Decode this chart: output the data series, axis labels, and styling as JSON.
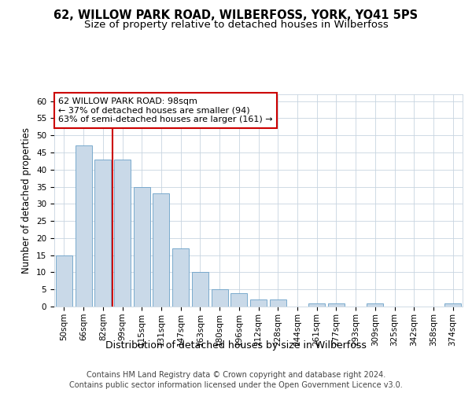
{
  "title": "62, WILLOW PARK ROAD, WILBERFOSS, YORK, YO41 5PS",
  "subtitle": "Size of property relative to detached houses in Wilberfoss",
  "xlabel": "Distribution of detached houses by size in Wilberfoss",
  "ylabel": "Number of detached properties",
  "bar_labels": [
    "50sqm",
    "66sqm",
    "82sqm",
    "99sqm",
    "115sqm",
    "131sqm",
    "147sqm",
    "163sqm",
    "180sqm",
    "196sqm",
    "212sqm",
    "228sqm",
    "244sqm",
    "261sqm",
    "277sqm",
    "293sqm",
    "309sqm",
    "325sqm",
    "342sqm",
    "358sqm",
    "374sqm"
  ],
  "bar_values": [
    15,
    47,
    43,
    43,
    35,
    33,
    17,
    10,
    5,
    4,
    2,
    2,
    0,
    1,
    1,
    0,
    1,
    0,
    0,
    0,
    1
  ],
  "bar_color": "#c9d9e8",
  "bar_edge_color": "#6aa0c7",
  "reference_line_x": 2.5,
  "reference_line_color": "#cc0000",
  "annotation_text": "62 WILLOW PARK ROAD: 98sqm\n← 37% of detached houses are smaller (94)\n63% of semi-detached houses are larger (161) →",
  "annotation_box_color": "#ffffff",
  "annotation_box_edge_color": "#cc0000",
  "ylim": [
    0,
    62
  ],
  "yticks": [
    0,
    5,
    10,
    15,
    20,
    25,
    30,
    35,
    40,
    45,
    50,
    55,
    60
  ],
  "footer_line1": "Contains HM Land Registry data © Crown copyright and database right 2024.",
  "footer_line2": "Contains public sector information licensed under the Open Government Licence v3.0.",
  "bg_color": "#ffffff",
  "grid_color": "#c8d4e0",
  "title_fontsize": 10.5,
  "subtitle_fontsize": 9.5,
  "tick_fontsize": 7.5,
  "ylabel_fontsize": 8.5,
  "xlabel_fontsize": 9,
  "annotation_fontsize": 8,
  "footer_fontsize": 7
}
